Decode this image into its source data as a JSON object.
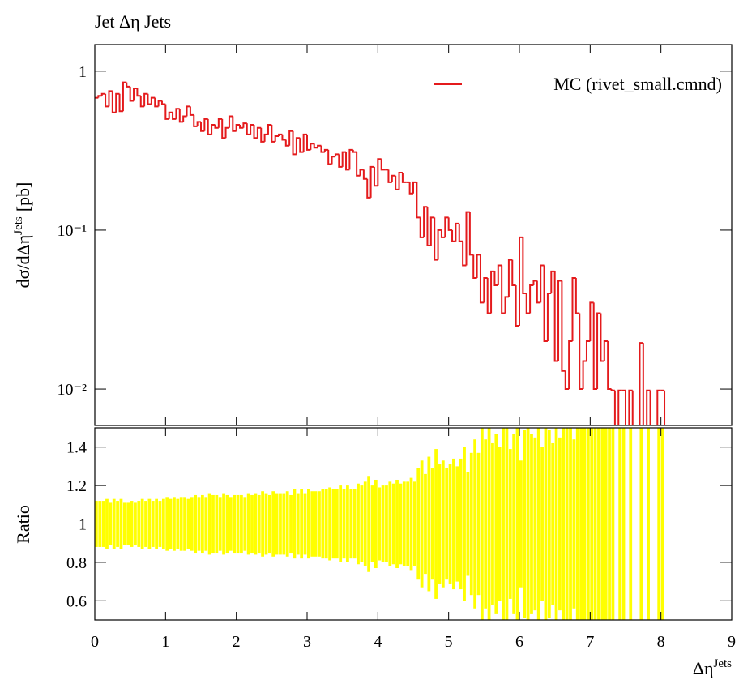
{
  "chart_data": [
    {
      "type": "histogram",
      "title": "Jet Δη Jets",
      "ylabel": "dσ/dΔη",
      "ylabel_sup": "Jets",
      "ylabel_unit": "[pb]",
      "log_y": true,
      "legend": "upper right",
      "xlim": [
        0,
        9
      ],
      "xticks": [
        0,
        1,
        2,
        3,
        4,
        5,
        6,
        7,
        8,
        9
      ],
      "ylim": [
        0.0059,
        1.47
      ],
      "yticks": [
        1,
        {
          "value": 0.1,
          "label": "10⁻¹"
        },
        {
          "value": 0.01,
          "label": "10⁻²"
        }
      ],
      "bins": [
        0,
        0.05,
        0.1,
        0.15,
        0.2,
        0.25,
        0.3,
        0.35,
        0.4,
        0.45,
        0.5,
        0.55,
        0.6,
        0.65,
        0.7,
        0.75,
        0.8,
        0.85,
        0.9,
        0.95,
        1,
        1.05,
        1.1,
        1.15,
        1.2,
        1.25,
        1.3,
        1.35,
        1.4,
        1.45,
        1.5,
        1.55,
        1.6,
        1.65,
        1.7,
        1.75,
        1.8,
        1.85,
        1.9,
        1.95,
        2,
        2.05,
        2.1,
        2.15,
        2.2,
        2.25,
        2.3,
        2.35,
        2.4,
        2.45,
        2.5,
        2.55,
        2.6,
        2.65,
        2.7,
        2.75,
        2.8,
        2.85,
        2.9,
        2.95,
        3,
        3.05,
        3.1,
        3.15,
        3.2,
        3.25,
        3.3,
        3.35,
        3.4,
        3.45,
        3.5,
        3.55,
        3.6,
        3.65,
        3.7,
        3.75,
        3.8,
        3.85,
        3.9,
        3.95,
        4,
        4.05,
        4.1,
        4.15,
        4.2,
        4.25,
        4.3,
        4.35,
        4.4,
        4.45,
        4.5,
        4.55,
        4.6,
        4.65,
        4.7,
        4.75,
        4.8,
        4.85,
        4.9,
        4.95,
        5,
        5.05,
        5.1,
        5.15,
        5.2,
        5.25,
        5.3,
        5.35,
        5.4,
        5.45,
        5.5,
        5.55,
        5.6,
        5.65,
        5.7,
        5.75,
        5.8,
        5.85,
        5.9,
        5.95,
        6,
        6.05,
        6.1,
        6.15,
        6.2,
        6.25,
        6.3,
        6.35,
        6.4,
        6.45,
        6.5,
        6.55,
        6.6,
        6.65,
        6.7,
        6.75,
        6.8,
        6.85,
        6.9,
        6.95,
        7,
        7.05,
        7.1,
        7.15,
        7.2,
        7.25,
        7.3,
        7.35,
        7.4,
        7.45,
        7.5,
        7.55,
        7.6,
        7.65,
        7.7,
        7.75,
        7.8,
        7.85,
        7.9,
        7.95,
        8,
        8.05,
        8.1
      ],
      "series": [
        {
          "name": "MC (rivet_small.cmnd)",
          "color": "#e41a1c",
          "values": [
            0.68,
            0.7,
            0.72,
            0.6,
            0.75,
            0.55,
            0.72,
            0.56,
            0.85,
            0.8,
            0.65,
            0.78,
            0.7,
            0.6,
            0.72,
            0.62,
            0.68,
            0.6,
            0.65,
            0.62,
            0.5,
            0.55,
            0.5,
            0.58,
            0.48,
            0.52,
            0.6,
            0.53,
            0.45,
            0.48,
            0.42,
            0.5,
            0.4,
            0.46,
            0.44,
            0.5,
            0.38,
            0.44,
            0.52,
            0.42,
            0.46,
            0.44,
            0.47,
            0.4,
            0.46,
            0.38,
            0.44,
            0.36,
            0.4,
            0.46,
            0.36,
            0.39,
            0.4,
            0.37,
            0.34,
            0.42,
            0.3,
            0.38,
            0.31,
            0.4,
            0.32,
            0.35,
            0.33,
            0.34,
            0.31,
            0.32,
            0.26,
            0.29,
            0.3,
            0.25,
            0.31,
            0.24,
            0.32,
            0.31,
            0.22,
            0.24,
            0.21,
            0.16,
            0.25,
            0.19,
            0.28,
            0.24,
            0.24,
            0.2,
            0.22,
            0.18,
            0.23,
            0.2,
            0.2,
            0.17,
            0.2,
            0.12,
            0.09,
            0.14,
            0.08,
            0.12,
            0.065,
            0.1,
            0.09,
            0.12,
            0.1,
            0.085,
            0.11,
            0.085,
            0.06,
            0.13,
            0.07,
            0.05,
            0.07,
            0.035,
            0.05,
            0.03,
            0.055,
            0.045,
            0.06,
            0.03,
            0.038,
            0.065,
            0.045,
            0.025,
            0.09,
            0.04,
            0.03,
            0.045,
            0.048,
            0.035,
            0.06,
            0.02,
            0.04,
            0.055,
            0.015,
            0.048,
            0.013,
            0.01,
            0.02,
            0.05,
            0.03,
            0.01,
            0.015,
            0.02,
            0.035,
            0.01,
            0.03,
            0.015,
            0.02,
            0.01,
            0.0098,
            0,
            0.0098,
            0.0098,
            0,
            0.0098,
            0,
            0,
            0.0195,
            0,
            0.0098,
            0,
            0,
            0.0098,
            0.0098,
            0
          ]
        }
      ]
    },
    {
      "type": "ratio_band",
      "ylabel": "Ratio",
      "xlabel": "Δη",
      "xlabel_sup": "Jets",
      "color": "#ffff00",
      "ylim": [
        0.5,
        1.5
      ],
      "yticks": [
        0.6,
        0.8,
        1,
        1.2,
        1.4
      ],
      "reference_line": 1,
      "errors": [
        0.12,
        0.12,
        0.12,
        0.13,
        0.11,
        0.13,
        0.12,
        0.13,
        0.11,
        0.11,
        0.12,
        0.11,
        0.12,
        0.13,
        0.12,
        0.13,
        0.12,
        0.13,
        0.12,
        0.13,
        0.14,
        0.13,
        0.14,
        0.13,
        0.14,
        0.14,
        0.13,
        0.14,
        0.15,
        0.14,
        0.15,
        0.14,
        0.16,
        0.15,
        0.15,
        0.14,
        0.16,
        0.15,
        0.14,
        0.15,
        0.15,
        0.15,
        0.14,
        0.16,
        0.15,
        0.16,
        0.15,
        0.17,
        0.16,
        0.15,
        0.17,
        0.16,
        0.16,
        0.16,
        0.17,
        0.15,
        0.18,
        0.16,
        0.18,
        0.16,
        0.18,
        0.17,
        0.17,
        0.17,
        0.18,
        0.18,
        0.19,
        0.18,
        0.18,
        0.2,
        0.18,
        0.2,
        0.18,
        0.18,
        0.21,
        0.2,
        0.22,
        0.25,
        0.2,
        0.23,
        0.19,
        0.2,
        0.2,
        0.22,
        0.21,
        0.23,
        0.21,
        0.22,
        0.22,
        0.24,
        0.22,
        0.29,
        0.33,
        0.26,
        0.35,
        0.29,
        0.39,
        0.31,
        0.33,
        0.29,
        0.31,
        0.34,
        0.3,
        0.34,
        0.4,
        0.27,
        0.37,
        0.44,
        0.37,
        0.53,
        0.44,
        0.57,
        0.42,
        0.47,
        0.4,
        0.57,
        0.51,
        0.39,
        0.47,
        0.63,
        0.33,
        0.49,
        0.57,
        0.47,
        0.45,
        0.53,
        0.4,
        0.7,
        0.49,
        0.42,
        0.81,
        0.45,
        0.87,
        0.99,
        0.7,
        0.44,
        0.57,
        0.99,
        0.81,
        0.7,
        0.53,
        0.99,
        0.57,
        0.81,
        0.7,
        0.99,
        1,
        0,
        1,
        1,
        0,
        1,
        0,
        0,
        0.71,
        0,
        1,
        0,
        0,
        1,
        1,
        0
      ]
    }
  ]
}
